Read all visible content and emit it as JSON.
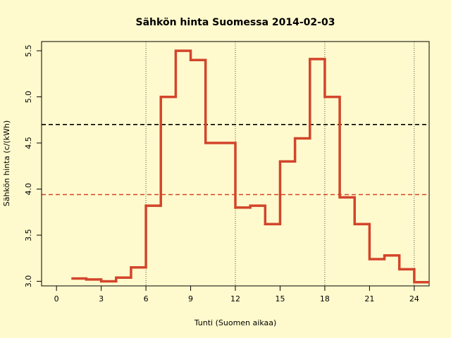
{
  "chart_data": {
    "type": "line",
    "title": "Sähkön hinta Suomessa 2014-02-03",
    "xlabel": "Tunti (Suomen aikaa)",
    "ylabel": "Sähkön hinta (c/(kWh)",
    "xlim": [
      -1,
      25
    ],
    "ylim": [
      2.95,
      5.6
    ],
    "xticks": [
      0,
      3,
      6,
      9,
      12,
      15,
      18,
      21,
      24
    ],
    "xtick_labels": [
      "0",
      "3",
      "6",
      "9",
      "12",
      "15",
      "18",
      "21",
      "24"
    ],
    "yticks": [
      3.0,
      3.5,
      4.0,
      4.5,
      5.0,
      5.5
    ],
    "ytick_labels": [
      "3.0",
      "3.5",
      "4.0",
      "4.5",
      "5.0",
      "5.5"
    ],
    "vertical_reference_lines": [
      6,
      12,
      18,
      24
    ],
    "grid": false,
    "series": [
      {
        "step": "post",
        "color": "#d2452b",
        "x": [
          1,
          2,
          3,
          4,
          5,
          6,
          7,
          8,
          9,
          10,
          11,
          12,
          13,
          14,
          15,
          16,
          17,
          18,
          19,
          20,
          21,
          22,
          23,
          24
        ],
        "values": [
          3.03,
          3.02,
          3.0,
          3.04,
          3.15,
          3.82,
          5.0,
          5.5,
          5.4,
          4.5,
          4.5,
          3.8,
          3.82,
          3.62,
          4.3,
          4.55,
          5.41,
          5.0,
          3.91,
          3.62,
          3.24,
          3.28,
          3.13,
          2.99
        ]
      }
    ],
    "reference_lines": [
      {
        "y": 4.7,
        "color": "#000000",
        "style": "dashed"
      },
      {
        "y": 3.94,
        "color": "#d2452b",
        "style": "dashed"
      }
    ]
  }
}
